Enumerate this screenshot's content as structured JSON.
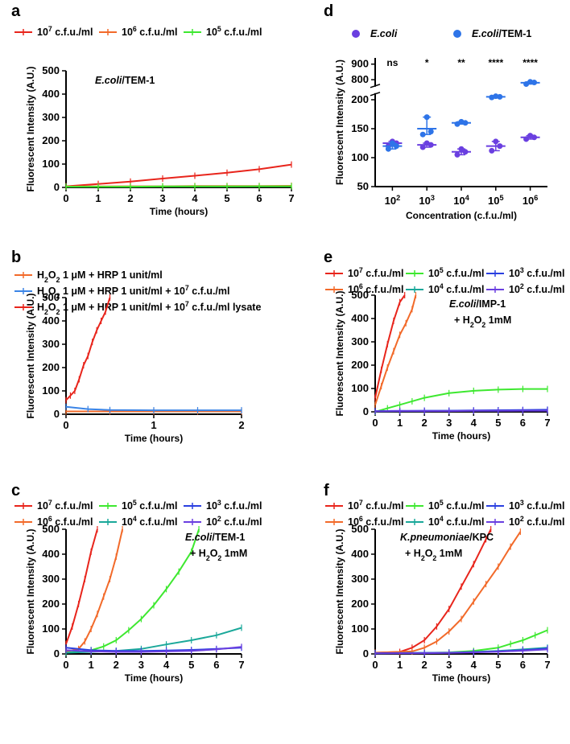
{
  "chart_data": [
    {
      "panel": "a",
      "type": "line",
      "annotation": [
        "E.coli",
        "/TEM-1"
      ],
      "xlabel": "Time (hours)",
      "ylabel": "Fluorescent Intensity (A.U.)",
      "xlim": [
        0,
        7
      ],
      "ylim": [
        0,
        500
      ],
      "xticks": [
        0,
        1,
        2,
        3,
        4,
        5,
        6,
        7
      ],
      "yticks": [
        0,
        100,
        200,
        300,
        400,
        500
      ],
      "legend_placement": "top",
      "series": [
        {
          "name": "10^7 c.f.u./ml",
          "color": "#e8251c",
          "x": [
            0,
            1,
            2,
            3,
            4,
            5,
            6,
            7
          ],
          "y": [
            5,
            15,
            25,
            38,
            50,
            63,
            78,
            98
          ]
        },
        {
          "name": "10^6 c.f.u./ml",
          "color": "#f26a2a",
          "x": [
            0,
            1,
            2,
            3,
            4,
            5,
            6,
            7
          ],
          "y": [
            4,
            4,
            5,
            5,
            6,
            6,
            6,
            7
          ]
        },
        {
          "name": "10^5 c.f.u./ml",
          "color": "#3ee830",
          "x": [
            0,
            1,
            2,
            3,
            4,
            5,
            6,
            7
          ],
          "y": [
            3,
            3,
            3,
            4,
            4,
            4,
            5,
            5
          ]
        }
      ]
    },
    {
      "panel": "d",
      "type": "scatter",
      "xlabel": "Concentration (c.f.u./ml)",
      "ylabel": "Fluorescent Intensity (A.U.)",
      "categories": [
        "10^2",
        "10^3",
        "10^4",
        "10^5",
        "10^6"
      ],
      "ylim_lower": [
        50,
        210
      ],
      "ylim_upper": [
        760,
        940
      ],
      "yticks": [
        50,
        100,
        150,
        200,
        800,
        900
      ],
      "legend_placement": "top",
      "significance": [
        "ns",
        "*",
        "**",
        "****",
        "****"
      ],
      "series": [
        {
          "name": "E.coli",
          "color": "#6a3fe0",
          "mean": [
            125,
            122,
            110,
            120,
            135
          ],
          "points": [
            [
              120,
              128,
              125
            ],
            [
              118,
              125,
              122
            ],
            [
              105,
              115,
              110
            ],
            [
              112,
              128,
              120
            ],
            [
              132,
              138,
              135
            ]
          ]
        },
        {
          "name": "E.coli/TEM-1",
          "color": "#2e74e8",
          "mean": [
            120,
            150,
            160,
            205,
            780
          ],
          "points": [
            [
              115,
              125,
              120
            ],
            [
              140,
              170,
              145
            ],
            [
              158,
              162,
              160
            ],
            [
              204,
              206,
              205
            ],
            [
              772,
              786,
              782
            ]
          ]
        }
      ]
    },
    {
      "panel": "b",
      "type": "line",
      "xlabel": "Time (hours)",
      "ylabel": "Fluorescent Intensity (A.U.)",
      "xlim": [
        0,
        2
      ],
      "ylim": [
        0,
        500
      ],
      "xticks": [
        0,
        1,
        2
      ],
      "yticks": [
        0,
        100,
        200,
        300,
        400,
        500
      ],
      "legend_placement": "top",
      "series": [
        {
          "name": "H2O2 1 μM + HRP 1 unit/ml",
          "color": "#f26a2a",
          "x": [
            0,
            0.5,
            1,
            1.5,
            2
          ],
          "y": [
            12,
            12,
            12,
            12,
            12
          ]
        },
        {
          "name": "H2O2 1 μM + HRP 1 unit/ml + 10^7 c.f.u./ml",
          "color": "#3a84e6",
          "x": [
            0,
            0.25,
            0.5,
            1,
            1.5,
            2
          ],
          "y": [
            32,
            22,
            18,
            17,
            17,
            17
          ]
        },
        {
          "name": "H2O2 1 μM + HRP 1 unit/ml + 10^7 c.f.u./ml lysate",
          "color": "#e8251c",
          "x": [
            0,
            0.05,
            0.1,
            0.15,
            0.2,
            0.25,
            0.3,
            0.35,
            0.4,
            0.45,
            0.5
          ],
          "y": [
            60,
            80,
            100,
            150,
            210,
            250,
            310,
            360,
            400,
            440,
            500
          ]
        }
      ]
    },
    {
      "panel": "e",
      "type": "line",
      "annotation": [
        "E.coli",
        "/IMP-1",
        "+ H2O2 1mM"
      ],
      "xlabel": "Time (hours)",
      "ylabel": "Fluorescent Intensity (A.U.)",
      "xlim": [
        0,
        7
      ],
      "ylim": [
        0,
        500
      ],
      "xticks": [
        0,
        1,
        2,
        3,
        4,
        5,
        6,
        7
      ],
      "yticks": [
        0,
        100,
        200,
        300,
        400,
        500
      ],
      "legend_placement": "top",
      "series": [
        {
          "name": "10^7 c.f.u./ml",
          "color": "#e8251c",
          "x": [
            0,
            0.25,
            0.5,
            0.75,
            1,
            1.2
          ],
          "y": [
            60,
            180,
            290,
            390,
            470,
            500
          ]
        },
        {
          "name": "10^6 c.f.u./ml",
          "color": "#f26a2a",
          "x": [
            0,
            0.25,
            0.5,
            0.75,
            1,
            1.25,
            1.5,
            1.65
          ],
          "y": [
            30,
            110,
            190,
            260,
            330,
            380,
            440,
            500
          ]
        },
        {
          "name": "10^5 c.f.u./ml",
          "color": "#3ee830",
          "x": [
            0,
            0.5,
            1,
            1.5,
            2,
            3,
            4,
            5,
            6,
            7
          ],
          "y": [
            0,
            15,
            30,
            45,
            60,
            80,
            90,
            95,
            98,
            98
          ]
        },
        {
          "name": "10^4 c.f.u./ml",
          "color": "#1aa89a",
          "x": [
            0,
            1,
            2,
            3,
            4,
            5,
            6,
            7
          ],
          "y": [
            2,
            3,
            3,
            4,
            5,
            5,
            6,
            7
          ]
        },
        {
          "name": "10^3 c.f.u./ml",
          "color": "#2a40e0",
          "x": [
            0,
            1,
            2,
            3,
            4,
            5,
            6,
            7
          ],
          "y": [
            3,
            4,
            5,
            5,
            6,
            7,
            8,
            9
          ]
        },
        {
          "name": "10^2 c.f.u./ml",
          "color": "#6a3fe0",
          "x": [
            0,
            1,
            2,
            3,
            4,
            5,
            6,
            7
          ],
          "y": [
            2,
            3,
            3,
            3,
            4,
            4,
            5,
            5
          ]
        }
      ]
    },
    {
      "panel": "c",
      "type": "line",
      "annotation": [
        "E.coli",
        "/TEM-1",
        "+ H2O2 1mM"
      ],
      "xlabel": "Time (hours)",
      "ylabel": "Fluorescent Intensity (A.U.)",
      "xlim": [
        0,
        7
      ],
      "ylim": [
        0,
        500
      ],
      "xticks": [
        0,
        1,
        2,
        3,
        4,
        5,
        6,
        7
      ],
      "yticks": [
        0,
        100,
        200,
        300,
        400,
        500
      ],
      "legend_placement": "top",
      "series": [
        {
          "name": "10^7 c.f.u./ml",
          "color": "#e8251c",
          "x": [
            0,
            0.25,
            0.5,
            0.75,
            1,
            1.25
          ],
          "y": [
            40,
            110,
            200,
            300,
            410,
            500
          ]
        },
        {
          "name": "10^6 c.f.u./ml",
          "color": "#f26a2a",
          "x": [
            0,
            0.5,
            0.75,
            1,
            1.25,
            1.5,
            1.75,
            2,
            2.25
          ],
          "y": [
            10,
            20,
            50,
            100,
            160,
            230,
            300,
            390,
            500
          ]
        },
        {
          "name": "10^5 c.f.u./ml",
          "color": "#3ee830",
          "x": [
            0,
            1,
            1.5,
            2,
            2.5,
            3,
            3.5,
            4,
            4.5,
            5,
            5.3
          ],
          "y": [
            5,
            15,
            30,
            55,
            95,
            140,
            195,
            260,
            330,
            410,
            500
          ]
        },
        {
          "name": "10^4 c.f.u./ml",
          "color": "#1aa89a",
          "x": [
            0,
            1,
            2,
            3,
            4,
            5,
            6,
            7
          ],
          "y": [
            5,
            8,
            12,
            20,
            38,
            55,
            75,
            105
          ]
        },
        {
          "name": "10^3 c.f.u./ml",
          "color": "#2a40e0",
          "x": [
            0,
            1,
            2,
            3,
            4,
            5,
            6,
            7
          ],
          "y": [
            25,
            15,
            12,
            12,
            14,
            16,
            20,
            25
          ]
        },
        {
          "name": "10^2 c.f.u./ml",
          "color": "#6a3fe0",
          "x": [
            0,
            1,
            2,
            3,
            4,
            5,
            6,
            7
          ],
          "y": [
            15,
            10,
            8,
            8,
            10,
            12,
            18,
            28
          ]
        }
      ]
    },
    {
      "panel": "f",
      "type": "line",
      "annotation": [
        "K.pneumoniae",
        "/KPC",
        "+ H2O2 1mM"
      ],
      "xlabel": "Time (hours)",
      "ylabel": "Fluorescent Intensity (A.U.)",
      "xlim": [
        0,
        7
      ],
      "ylim": [
        0,
        500
      ],
      "xticks": [
        0,
        1,
        2,
        3,
        4,
        5,
        6,
        7
      ],
      "yticks": [
        0,
        100,
        200,
        300,
        400,
        500
      ],
      "legend_placement": "top",
      "series": [
        {
          "name": "10^7 c.f.u./ml",
          "color": "#e8251c",
          "x": [
            0,
            1,
            1.5,
            2,
            2.5,
            3,
            3.5,
            4,
            4.5,
            4.7
          ],
          "y": [
            5,
            8,
            25,
            55,
            110,
            180,
            270,
            360,
            460,
            500
          ]
        },
        {
          "name": "10^6 c.f.u./ml",
          "color": "#f26a2a",
          "x": [
            0,
            1.5,
            2,
            2.5,
            3,
            3.5,
            4,
            4.5,
            5,
            5.5,
            5.9
          ],
          "y": [
            5,
            10,
            25,
            50,
            90,
            140,
            210,
            280,
            350,
            430,
            490
          ]
        },
        {
          "name": "10^5 c.f.u./ml",
          "color": "#3ee830",
          "x": [
            0,
            2,
            3,
            4,
            5,
            5.5,
            6,
            6.5,
            7
          ],
          "y": [
            3,
            4,
            6,
            12,
            25,
            40,
            55,
            75,
            95
          ]
        },
        {
          "name": "10^4 c.f.u./ml",
          "color": "#1aa89a",
          "x": [
            0,
            2,
            3,
            4,
            5,
            6,
            7
          ],
          "y": [
            3,
            4,
            5,
            8,
            12,
            18,
            25
          ]
        },
        {
          "name": "10^3 c.f.u./ml",
          "color": "#2a40e0",
          "x": [
            0,
            2,
            3,
            4,
            5,
            6,
            7
          ],
          "y": [
            3,
            4,
            5,
            7,
            10,
            15,
            22
          ]
        },
        {
          "name": "10^2 c.f.u./ml",
          "color": "#6a3fe0",
          "x": [
            0,
            2,
            3,
            4,
            5,
            6,
            7
          ],
          "y": [
            2,
            3,
            4,
            6,
            9,
            13,
            18
          ]
        }
      ]
    }
  ]
}
